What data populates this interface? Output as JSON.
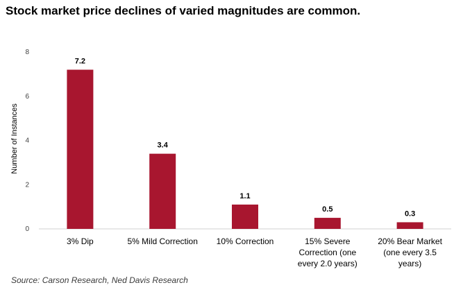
{
  "title": "Stock market price declines of varied magnitudes are common.",
  "source": "Source:  Carson Research, Ned Davis Research",
  "colors": {
    "bar": "#a8162f",
    "axis": "#d0d0d0"
  },
  "chart_data": {
    "type": "bar",
    "title": "Stock market price declines of varied magnitudes are common.",
    "xlabel": "",
    "ylabel": "Number of Instances",
    "ylim": [
      0,
      8
    ],
    "yticks": [
      0,
      2,
      4,
      6,
      8
    ],
    "grid": false,
    "legend": "none",
    "categories": [
      [
        "3% Dip"
      ],
      [
        "5% Mild Correction"
      ],
      [
        "10% Correction"
      ],
      [
        "15% Severe",
        "Correction (one",
        "every 2.0 years)"
      ],
      [
        "20% Bear Market",
        "(one every 3.5",
        "years)"
      ]
    ],
    "values": [
      7.2,
      3.4,
      1.1,
      0.5,
      0.3
    ],
    "data_labels": [
      "7.2",
      "3.4",
      "1.1",
      "0.5",
      "0.3"
    ]
  }
}
